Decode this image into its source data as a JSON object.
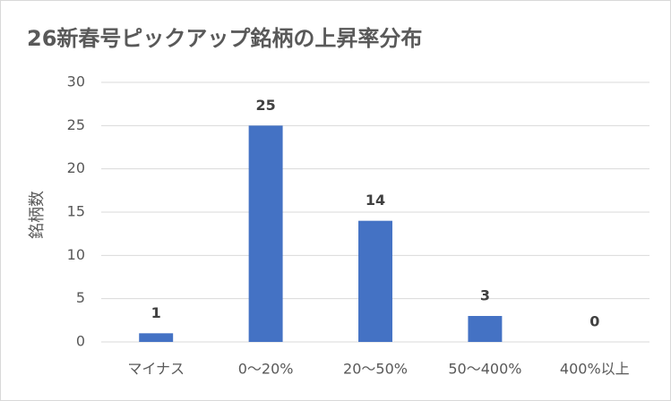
{
  "chart_data": {
    "type": "bar",
    "title": "26新春号ピックアップ銘柄の上昇率分布",
    "y_label": "銘柄数",
    "categories": [
      "マイナス",
      "0～20%",
      "20～50%",
      "50～400%",
      "400%以上"
    ],
    "values": [
      1,
      25,
      14,
      3,
      0
    ],
    "color": "#4472c4",
    "ylim": [
      0,
      30
    ],
    "yticks": [
      0,
      5,
      10,
      15,
      20,
      25,
      30
    ],
    "grid": true,
    "data_labels": true
  }
}
